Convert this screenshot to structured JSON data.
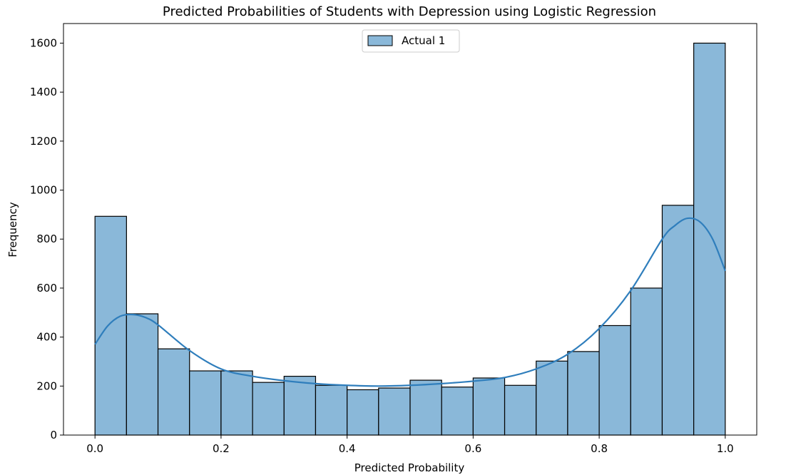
{
  "chart_data": {
    "type": "bar",
    "title": "Predicted Probabilities of Students with Depression using Logistic Regression",
    "xlabel": "Predicted Probability",
    "ylabel": "Frequency",
    "xlim": [
      -0.05,
      1.05
    ],
    "ylim": [
      0,
      1680
    ],
    "xticks": [
      0.0,
      0.2,
      0.4,
      0.6,
      0.8,
      1.0
    ],
    "xtick_labels": [
      "0.0",
      "0.2",
      "0.4",
      "0.6",
      "0.8",
      "1.0"
    ],
    "yticks": [
      0,
      200,
      400,
      600,
      800,
      1000,
      1200,
      1400,
      1600
    ],
    "ytick_labels": [
      "0",
      "200",
      "400",
      "600",
      "800",
      "1000",
      "1200",
      "1400",
      "1600"
    ],
    "bin_edges": [
      0.0,
      0.05,
      0.1,
      0.15,
      0.2,
      0.25,
      0.3,
      0.35,
      0.4,
      0.45,
      0.5,
      0.55,
      0.6,
      0.65,
      0.7,
      0.75,
      0.8,
      0.85,
      0.9,
      0.95,
      1.0
    ],
    "series": [
      {
        "name": "Actual 1",
        "values": [
          893,
          495,
          352,
          262,
          262,
          215,
          240,
          203,
          185,
          192,
          224,
          196,
          233,
          203,
          302,
          341,
          447,
          600,
          938,
          1600
        ],
        "color": "#8ab8d9",
        "edge_color": "#000000"
      }
    ],
    "kde": {
      "x": [
        0.0,
        0.02,
        0.04,
        0.06,
        0.08,
        0.1,
        0.15,
        0.2,
        0.25,
        0.3,
        0.35,
        0.4,
        0.45,
        0.5,
        0.55,
        0.6,
        0.65,
        0.7,
        0.75,
        0.8,
        0.85,
        0.9,
        0.92,
        0.94,
        0.96,
        0.98,
        1.0
      ],
      "y": [
        370,
        445,
        485,
        492,
        480,
        450,
        345,
        270,
        240,
        222,
        210,
        203,
        200,
        203,
        210,
        220,
        235,
        270,
        330,
        435,
        590,
        800,
        855,
        885,
        870,
        800,
        670
      ],
      "color": "#2f7ebc"
    },
    "legend": {
      "placement": "upper center",
      "entries": [
        "Actual 1"
      ]
    },
    "grid": false
  }
}
